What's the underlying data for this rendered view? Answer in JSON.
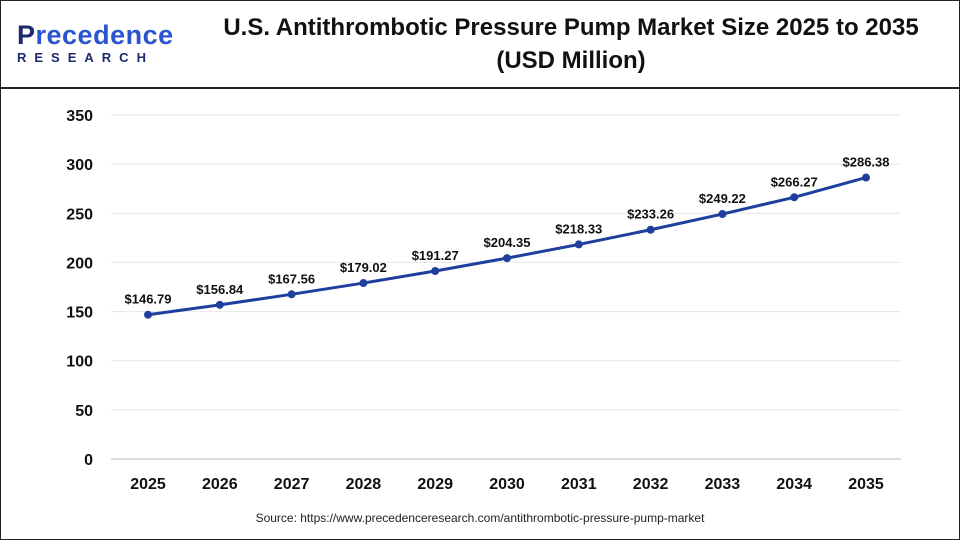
{
  "logo": {
    "main_first": "P",
    "main_rest": "recedence",
    "sub": "RESEARCH"
  },
  "title_line1": "U.S. Antithrombotic Pressure Pump Market Size 2025 to 2035",
  "title_line2": "(USD Million)",
  "source": "Source: https://www.precedenceresearch.com/antithrombotic-pressure-pump-market",
  "chart_data": {
    "type": "line",
    "title": "U.S. Antithrombotic Pressure Pump Market Size 2025 to 2035 (USD Million)",
    "categories": [
      "2025",
      "2026",
      "2027",
      "2028",
      "2029",
      "2030",
      "2031",
      "2032",
      "2033",
      "2034",
      "2035"
    ],
    "values": [
      146.79,
      156.84,
      167.56,
      179.02,
      191.27,
      204.35,
      218.33,
      233.26,
      249.22,
      266.27,
      286.38
    ],
    "data_labels": [
      "$146.79",
      "$156.84",
      "$167.56",
      "$179.02",
      "$191.27",
      "$204.35",
      "$218.33",
      "$233.26",
      "$249.22",
      "$266.27",
      "$286.38"
    ],
    "ylim": [
      0,
      350
    ],
    "yticks": [
      0,
      50,
      100,
      150,
      200,
      250,
      300,
      350
    ],
    "grid": true,
    "legend": "none",
    "line_color": "#1f3f9e"
  }
}
